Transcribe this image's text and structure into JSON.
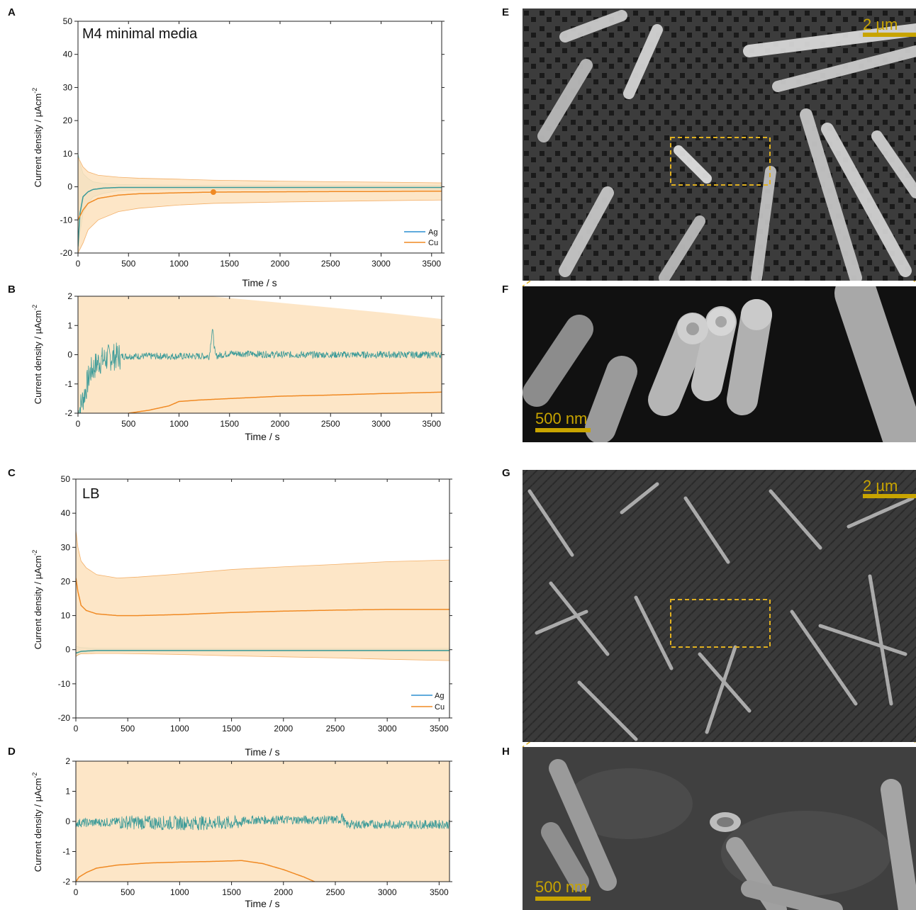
{
  "colors": {
    "ag": "#3a9a98",
    "ag_legend": "#2b8fd0",
    "cu": "#f08a24",
    "cu_band": "#fde2bd",
    "ag_band": "#b9d9cf",
    "scalebar": "#c8a400",
    "roi": "#e0b020"
  },
  "panel_labels": {
    "A": "A",
    "B": "B",
    "C": "C",
    "D": "D",
    "E": "E",
    "F": "F",
    "G": "G",
    "H": "H"
  },
  "legend": {
    "ag": "Ag",
    "cu": "Cu"
  },
  "sem": {
    "E": {
      "scale": "2 µm"
    },
    "F": {
      "scale": "500 nm"
    },
    "G": {
      "scale": "2 µm"
    },
    "H": {
      "scale": "500 nm"
    }
  },
  "chart_data": [
    {
      "panel": "A",
      "type": "line",
      "title": "M4 minimal media",
      "xlabel": "Time / s",
      "ylabel": "Current density / µAcm",
      "ylabel_sup": "-2",
      "xlim": [
        0,
        3600
      ],
      "ylim": [
        -20,
        50
      ],
      "xticks": [
        "0",
        "500",
        "1000",
        "1500",
        "2000",
        "2500",
        "3000",
        "3500"
      ],
      "yticks": [
        "-20",
        "-10",
        "0",
        "10",
        "20",
        "30",
        "40",
        "50"
      ],
      "legend_position": "bottom-right",
      "series": [
        {
          "name": "Ag",
          "x": [
            0,
            20,
            50,
            100,
            150,
            250,
            400,
            600,
            1000,
            2000,
            3000,
            3600
          ],
          "y": [
            -18,
            -8,
            -3,
            -1.5,
            -0.8,
            -0.4,
            -0.2,
            -0.2,
            -0.2,
            -0.2,
            -0.2,
            -0.2
          ],
          "band_upper": [
            10,
            7,
            4,
            2.5,
            1.5,
            1,
            0.7,
            0.6,
            0.5,
            0.5,
            0.5,
            0.5
          ],
          "band_lower": [
            -20,
            -14,
            -8,
            -5,
            -3,
            -2,
            -1.2,
            -1,
            -0.8,
            -0.8,
            -0.8,
            -0.8
          ]
        },
        {
          "name": "Cu",
          "x": [
            0,
            50,
            100,
            200,
            400,
            600,
            1000,
            1340,
            2000,
            3000,
            3600
          ],
          "y": [
            -10,
            -7,
            -5,
            -3.5,
            -2.5,
            -2.1,
            -1.8,
            -1.6,
            -1.5,
            -1.4,
            -1.3
          ],
          "band_upper": [
            9,
            6,
            4.5,
            3.5,
            2.9,
            2.6,
            2.3,
            2.0,
            1.7,
            1.4,
            1.2
          ],
          "band_lower": [
            -20,
            -17,
            -13,
            -10,
            -7.5,
            -6.5,
            -5.5,
            -5,
            -4.6,
            -4.2,
            -4
          ]
        }
      ]
    },
    {
      "panel": "B",
      "type": "line",
      "xlabel": "Time / s",
      "ylabel": "Current density / µAcm",
      "ylabel_sup": "-2",
      "xlim": [
        0,
        3600
      ],
      "ylim": [
        -2,
        2
      ],
      "xticks": [
        "0",
        "500",
        "1000",
        "1500",
        "2000",
        "2500",
        "3000",
        "3500"
      ],
      "yticks": [
        "-2",
        "-1",
        "0",
        "1",
        "2"
      ],
      "series": [
        {
          "name": "Ag",
          "x": [
            0,
            60,
            120,
            200,
            300,
            400,
            600,
            1000,
            1300,
            1330,
            1360,
            1500,
            2000,
            3000,
            3600
          ],
          "y": [
            -2,
            -1.4,
            -0.6,
            -0.25,
            -0.1,
            -0.05,
            -0.05,
            -0.05,
            -0.05,
            0.9,
            -0.05,
            0.05,
            0.0,
            0.0,
            0.0
          ],
          "noise": 0.12
        },
        {
          "name": "Cu",
          "x": [
            500,
            700,
            900,
            1000,
            1200,
            1500,
            2000,
            2500,
            3000,
            3600
          ],
          "y": [
            -2,
            -1.9,
            -1.75,
            -1.6,
            -1.55,
            -1.5,
            -1.42,
            -1.38,
            -1.33,
            -1.28
          ],
          "band_upper_x": [
            0,
            1000,
            1300,
            2000,
            3000,
            3600
          ],
          "band_upper": [
            2,
            2,
            2,
            1.78,
            1.45,
            1.22
          ]
        }
      ]
    },
    {
      "panel": "C",
      "type": "line",
      "title": "LB",
      "xlabel": "Time / s",
      "ylabel": "Current density / µAcm",
      "ylabel_sup": "-2",
      "xlim": [
        0,
        3600
      ],
      "ylim": [
        -20,
        50
      ],
      "xticks": [
        "0",
        "500",
        "1000",
        "1500",
        "2000",
        "2500",
        "3000",
        "3500"
      ],
      "yticks": [
        "-20",
        "-10",
        "0",
        "10",
        "20",
        "30",
        "40",
        "50"
      ],
      "legend_position": "bottom-right",
      "series": [
        {
          "name": "Ag",
          "x": [
            0,
            50,
            200,
            1000,
            2000,
            3000,
            3600
          ],
          "y": [
            -1,
            -0.5,
            -0.2,
            -0.2,
            -0.2,
            -0.2,
            -0.2
          ],
          "band_upper": [
            1,
            0.6,
            0.4,
            0.4,
            0.4,
            0.4,
            0.4
          ],
          "band_lower": [
            -2,
            -1,
            -0.6,
            -0.6,
            -0.6,
            -0.6,
            -0.6
          ]
        },
        {
          "name": "Cu",
          "x": [
            0,
            20,
            50,
            100,
            200,
            400,
            600,
            1000,
            1500,
            2000,
            2500,
            3000,
            3600
          ],
          "y": [
            21,
            17,
            13,
            11.5,
            10.5,
            10,
            10,
            10.3,
            10.9,
            11.3,
            11.6,
            11.8,
            11.8
          ],
          "band_upper": [
            35,
            30,
            26,
            24,
            22,
            21,
            21.3,
            22.2,
            23.5,
            24.3,
            25,
            25.8,
            26.3
          ],
          "band_lower": [
            -2,
            -1.5,
            -1.2,
            -1.2,
            -1.1,
            -1.1,
            -1.2,
            -1.4,
            -1.8,
            -2.1,
            -2.4,
            -2.8,
            -3.2
          ]
        }
      ]
    },
    {
      "panel": "D",
      "type": "line",
      "xlabel": "Time / s",
      "ylabel": "Current density / µAcm",
      "ylabel_sup": "-2",
      "xlim": [
        0,
        3600
      ],
      "ylim": [
        -2,
        2
      ],
      "xticks": [
        "0",
        "500",
        "1000",
        "1500",
        "2000",
        "2500",
        "3000",
        "3500"
      ],
      "yticks": [
        "-2",
        "-1",
        "0",
        "1",
        "2"
      ],
      "series": [
        {
          "name": "Ag",
          "x": [
            0,
            400,
            800,
            1200,
            1550,
            1600,
            1700,
            2000,
            2550,
            2560,
            2600,
            3000,
            3600
          ],
          "y": [
            -0.05,
            -0.02,
            -0.05,
            -0.05,
            -0.05,
            0.0,
            0.05,
            0.05,
            0.05,
            0.2,
            -0.1,
            -0.1,
            -0.1
          ],
          "noise": 0.15
        },
        {
          "name": "Cu",
          "x": [
            0,
            30,
            100,
            200,
            400,
            700,
            1000,
            1300,
            1600,
            1800,
            2000,
            2200,
            2300
          ],
          "y": [
            -2,
            -1.85,
            -1.7,
            -1.55,
            -1.45,
            -1.38,
            -1.35,
            -1.33,
            -1.3,
            -1.4,
            -1.6,
            -1.85,
            -2
          ]
        }
      ]
    }
  ]
}
